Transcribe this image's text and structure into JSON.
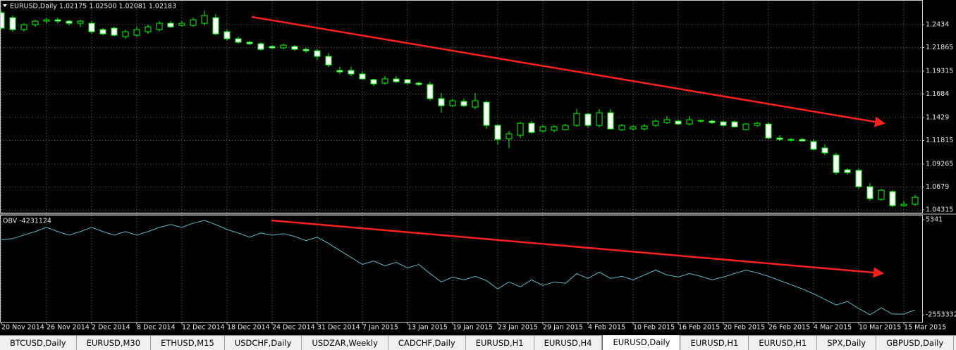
{
  "chart_data": [
    {
      "type": "candlestick",
      "title": "EURUSD,Daily  1.02175 1.02500 1.02081 1.02183",
      "categories": [
        "20 Nov 2014",
        null,
        null,
        null,
        "26 Nov 2014",
        null,
        null,
        null,
        "2 Dec 2014",
        null,
        null,
        null,
        "8 Dec 2014",
        null,
        null,
        null,
        "12 Dec 2014",
        null,
        null,
        null,
        "18 Dec 2014",
        null,
        null,
        null,
        "24 Dec 2014",
        null,
        null,
        null,
        "31 Dec 2014",
        null,
        null,
        null,
        "7 Jan 2015",
        null,
        null,
        null,
        "13 Jan 2015",
        null,
        null,
        null,
        "19 Jan 2015",
        null,
        null,
        null,
        "23 Jan 2015",
        null,
        null,
        null,
        "29 Jan 2015",
        null,
        null,
        null,
        "4 Feb 2015",
        null,
        null,
        null,
        "10 Feb 2015",
        null,
        null,
        null,
        "16 Feb 2015",
        null,
        null,
        null,
        "20 Feb 2015",
        null,
        null,
        null,
        "26 Feb 2015",
        null,
        null,
        null,
        "4 Mar 2015",
        null,
        null,
        null,
        "10 Mar 2015",
        null,
        null,
        null,
        "15 Mar 2015",
        null
      ],
      "open": [
        1.2563,
        1.251,
        1.2381,
        1.2434,
        1.2472,
        1.2487,
        1.2472,
        1.2449,
        1.2449,
        1.2381,
        1.2396,
        1.2305,
        1.232,
        1.2358,
        1.2381,
        1.2449,
        1.2426,
        1.2426,
        1.2449,
        1.251,
        1.2358,
        1.2282,
        1.2244,
        1.2228,
        1.2198,
        1.2183,
        1.2198,
        1.2167,
        1.2152,
        1.2091,
        1.1939,
        1.1939,
        1.1901,
        1.184,
        1.1802,
        1.1848,
        1.184,
        1.1802,
        1.1787,
        1.1634,
        1.1558,
        1.1604,
        1.1543,
        1.1596,
        1.1345,
        1.12,
        1.1238,
        1.1368,
        1.1284,
        1.1292,
        1.1299,
        1.1345,
        1.1467,
        1.1345,
        1.1482,
        1.1299,
        1.1307,
        1.1307,
        1.1345,
        1.1375,
        1.1391,
        1.136,
        1.1398,
        1.1391,
        1.1383,
        1.1383,
        1.1299,
        1.1345,
        1.136,
        1.1208,
        1.1193,
        1.1193,
        1.117,
        1.1101,
        1.1025,
        1.0865,
        1.0858,
        1.0682,
        1.0545,
        1.0629,
        1.0477,
        1.0492
      ],
      "high": [
        1.2586,
        1.2533,
        1.2449,
        1.2487,
        1.251,
        1.251,
        1.2487,
        1.2487,
        1.2472,
        1.2396,
        1.2411,
        1.2381,
        1.2411,
        1.2434,
        1.2472,
        1.2472,
        1.2472,
        1.251,
        1.2586,
        1.2548,
        1.2381,
        1.2305,
        1.2259,
        1.2244,
        1.2213,
        1.2228,
        1.2213,
        1.2183,
        1.2167,
        1.2129,
        1.1977,
        1.1977,
        1.1924,
        1.1848,
        1.1878,
        1.1878,
        1.1848,
        1.1817,
        1.1817,
        1.1695,
        1.1634,
        1.1634,
        1.1695,
        1.1611,
        1.136,
        1.1284,
        1.1383,
        1.1391,
        1.1345,
        1.1345,
        1.136,
        1.152,
        1.1482,
        1.152,
        1.152,
        1.136,
        1.1345,
        1.136,
        1.1406,
        1.1444,
        1.1406,
        1.1444,
        1.1406,
        1.1406,
        1.1398,
        1.1398,
        1.1368,
        1.1383,
        1.1375,
        1.1238,
        1.1208,
        1.1208,
        1.1193,
        1.1139,
        1.1048,
        1.088,
        1.088,
        1.072,
        1.0659,
        1.0644,
        1.053,
        1.0591
      ],
      "low": [
        1.2381,
        1.2358,
        1.2358,
        1.2411,
        1.2449,
        1.2449,
        1.2426,
        1.2411,
        1.2335,
        1.232,
        1.2305,
        1.2282,
        1.2305,
        1.2335,
        1.2358,
        1.2396,
        1.2411,
        1.2411,
        1.2426,
        1.232,
        1.2259,
        1.2228,
        1.2213,
        1.2152,
        1.2167,
        1.2167,
        1.2152,
        1.2129,
        1.2053,
        1.1977,
        1.1901,
        1.1878,
        1.184,
        1.1771,
        1.1787,
        1.1802,
        1.1787,
        1.1771,
        1.1611,
        1.1482,
        1.1543,
        1.1543,
        1.152,
        1.1307,
        1.1139,
        1.1101,
        1.1208,
        1.1254,
        1.1269,
        1.1269,
        1.1292,
        1.133,
        1.1322,
        1.1322,
        1.1299,
        1.1284,
        1.1292,
        1.1292,
        1.133,
        1.136,
        1.1345,
        1.1345,
        1.1375,
        1.136,
        1.133,
        1.1322,
        1.1292,
        1.133,
        1.12,
        1.1177,
        1.117,
        1.117,
        1.1071,
        1.1025,
        1.0812,
        1.0812,
        1.0659,
        1.053,
        1.053,
        1.0461,
        1.0461,
        1.0477
      ],
      "close": [
        1.2396,
        1.2381,
        1.2434,
        1.2472,
        1.2487,
        1.2472,
        1.2449,
        1.2472,
        1.2358,
        1.2335,
        1.232,
        1.2358,
        1.2381,
        1.2411,
        1.2449,
        1.2411,
        1.2449,
        1.2487,
        1.2533,
        1.2335,
        1.2282,
        1.2244,
        1.2228,
        1.2167,
        1.2183,
        1.2213,
        1.2167,
        1.2152,
        1.2091,
        1.1999,
        1.1924,
        1.1901,
        1.1848,
        1.1794,
        1.1848,
        1.1817,
        1.1802,
        1.1787,
        1.1634,
        1.1558,
        1.1611,
        1.1558,
        1.1611,
        1.1345,
        1.1193,
        1.1254,
        1.1368,
        1.1269,
        1.133,
        1.133,
        1.1345,
        1.1474,
        1.1345,
        1.1482,
        1.1307,
        1.1345,
        1.133,
        1.1337,
        1.1391,
        1.1406,
        1.136,
        1.1406,
        1.1391,
        1.1375,
        1.1345,
        1.133,
        1.136,
        1.1368,
        1.1208,
        1.1193,
        1.1185,
        1.1177,
        1.1086,
        1.1048,
        1.0835,
        1.0835,
        1.0682,
        1.0553,
        1.0644,
        1.0477,
        1.0492,
        1.0568
      ],
      "up_color": "#000000",
      "down_color": "#ffffff",
      "outline_color": "#00ff00",
      "ylim": [
        1.0401,
        1.2678
      ],
      "yticks": [
        1.04315,
        1.0679,
        1.09265,
        1.11815,
        1.1429,
        1.1684,
        1.19315,
        1.21865,
        1.2434
      ],
      "grid": true
    },
    {
      "type": "line",
      "title": "OBV -4231124",
      "values": [
        -540000,
        -503000,
        -409000,
        -315000,
        -202000,
        -315000,
        -409000,
        -315000,
        -202000,
        -315000,
        -409000,
        -315000,
        -409000,
        -315000,
        -202000,
        -127000,
        -202000,
        -89000,
        -14000,
        -127000,
        -258000,
        -352000,
        -465000,
        -352000,
        -409000,
        -371000,
        -446000,
        -559000,
        -465000,
        -634000,
        -822000,
        -1010000,
        -1198000,
        -1104000,
        -1236000,
        -1142000,
        -1292000,
        -1198000,
        -1443000,
        -1668000,
        -1537000,
        -1612000,
        -1518000,
        -1631000,
        -1856000,
        -1668000,
        -1800000,
        -1612000,
        -1762000,
        -1668000,
        -1706000,
        -1443000,
        -1574000,
        -1405000,
        -1574000,
        -1518000,
        -1612000,
        -1480000,
        -1349000,
        -1480000,
        -1537000,
        -1443000,
        -1518000,
        -1612000,
        -1537000,
        -1443000,
        -1349000,
        -1424000,
        -1518000,
        -1631000,
        -1743000,
        -1856000,
        -1988000,
        -2138000,
        -2289000,
        -2195000,
        -2383000,
        -2552000,
        -2364000,
        -2533000,
        -2533000,
        -2420000
      ],
      "color": "#5fb8c8",
      "ylim": [
        -2760000,
        118000
      ],
      "yticks": [
        5341,
        -2553332
      ]
    }
  ],
  "tabs": [
    {
      "label": "BTCUSD,Daily",
      "selected": false
    },
    {
      "label": "EURUSD,M30",
      "selected": false
    },
    {
      "label": "ETHUSD,M15",
      "selected": false
    },
    {
      "label": "USDCHF,Daily",
      "selected": false
    },
    {
      "label": "USDZAR,Weekly",
      "selected": false
    },
    {
      "label": "CADCHF,Daily",
      "selected": false
    },
    {
      "label": "EURUSD,H1",
      "selected": false
    },
    {
      "label": "EURUSD,H4",
      "selected": false
    },
    {
      "label": "EURUSD,Daily",
      "selected": true
    },
    {
      "label": "EURUSD,H1",
      "selected": false
    },
    {
      "label": "EURUSD,H1",
      "selected": false
    },
    {
      "label": "SPX,Daily",
      "selected": false
    },
    {
      "label": "GBPUSD,Daily",
      "selected": false
    }
  ]
}
